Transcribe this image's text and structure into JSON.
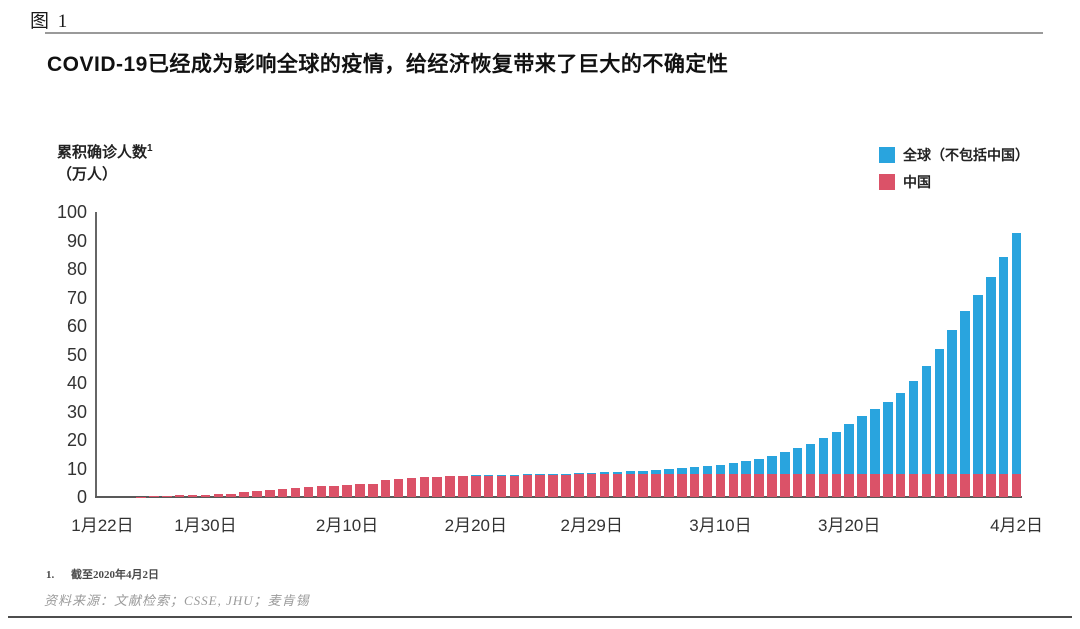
{
  "figure_label": "图 1",
  "title": "COVID-19已经成为影响全球的疫情，给经济恢复带来了巨大的不确定性",
  "y_axis_title": {
    "line1": "累积确诊人数",
    "sup": "1",
    "line2": "（万人）"
  },
  "legend": [
    {
      "label": "全球（不包括中国）",
      "color": "#29A4DE"
    },
    {
      "label": "中国",
      "color": "#DB5268"
    }
  ],
  "footnote": {
    "number": "1.",
    "text": "截至2020年4月2日"
  },
  "source": "资料来源：文献检索；CSSE, JHU；麦肯锡",
  "chart_data": {
    "type": "bar",
    "stacked": true,
    "title": "累积确诊人数（万人），2020年1月22日至4月2日",
    "ylabel": "累积确诊人数（万人）",
    "xlabel": "",
    "ylim": [
      0,
      100
    ],
    "yticks": [
      0,
      10,
      20,
      30,
      40,
      50,
      60,
      70,
      80,
      90,
      100
    ],
    "grid": false,
    "legend_position": "top-right",
    "n_bars": 72,
    "x_first_date": "1月22日",
    "x_last_date": "4月2日",
    "x_tick_labels": [
      {
        "label": "1月22日",
        "index": 0
      },
      {
        "label": "1月30日",
        "index": 8
      },
      {
        "label": "2月10日",
        "index": 19
      },
      {
        "label": "2月20日",
        "index": 29
      },
      {
        "label": "2月29日",
        "index": 38
      },
      {
        "label": "3月10日",
        "index": 48
      },
      {
        "label": "3月20日",
        "index": 58
      },
      {
        "label": "4月2日",
        "index": 71
      }
    ],
    "series": [
      {
        "name": "中国",
        "color": "#DB5268",
        "stack_order": "bottom",
        "values": [
          0.06,
          0.07,
          0.09,
          0.14,
          0.21,
          0.29,
          0.55,
          0.61,
          0.82,
          0.98,
          1.19,
          1.68,
          1.99,
          2.39,
          2.76,
          3.11,
          3.44,
          3.71,
          4.0,
          4.26,
          4.45,
          4.48,
          6.04,
          6.37,
          6.65,
          6.88,
          7.07,
          7.26,
          7.43,
          7.47,
          7.55,
          7.64,
          7.7,
          7.74,
          7.78,
          7.82,
          7.86,
          7.9,
          7.95,
          7.99,
          8.01,
          8.03,
          8.04,
          8.06,
          8.07,
          8.08,
          8.08,
          8.09,
          8.1,
          8.11,
          8.11,
          8.12,
          8.12,
          8.13,
          8.13,
          8.14,
          8.14,
          8.15,
          8.15,
          8.16,
          8.16,
          8.17,
          8.17,
          8.18,
          8.18,
          8.19,
          8.19,
          8.2,
          8.2,
          8.21,
          8.22,
          8.23
        ]
      },
      {
        "name": "全球（不包括中国）",
        "color": "#29A4DE",
        "stack_order": "top",
        "values": [
          0.0,
          0.0,
          0.0,
          0.0,
          0.01,
          0.01,
          0.01,
          0.01,
          0.01,
          0.01,
          0.01,
          0.02,
          0.02,
          0.02,
          0.03,
          0.03,
          0.03,
          0.03,
          0.03,
          0.04,
          0.04,
          0.05,
          0.05,
          0.06,
          0.08,
          0.08,
          0.09,
          0.09,
          0.1,
          0.11,
          0.13,
          0.15,
          0.19,
          0.22,
          0.25,
          0.3,
          0.37,
          0.45,
          0.55,
          0.66,
          0.8,
          0.97,
          1.15,
          1.37,
          1.64,
          1.95,
          2.3,
          2.7,
          3.15,
          3.7,
          4.4,
          5.3,
          6.4,
          7.8,
          8.9,
          10.4,
          12.4,
          14.8,
          17.6,
          20.1,
          22.7,
          25.0,
          28.4,
          32.5,
          37.8,
          43.6,
          50.4,
          57.0,
          62.8,
          69.0,
          76.0,
          84.3
        ]
      }
    ]
  }
}
